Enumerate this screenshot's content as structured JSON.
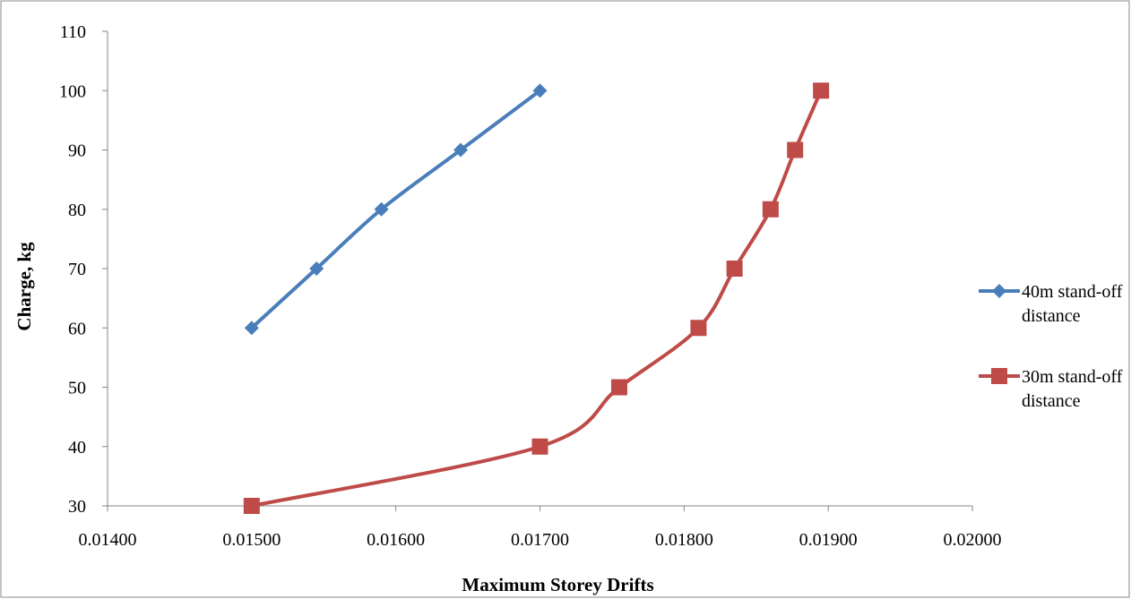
{
  "chart_data": {
    "type": "line",
    "title": "",
    "xlabel": "Maximum Storey Drifts",
    "ylabel": "Charge, kg",
    "xlim": [
      0.014,
      0.02
    ],
    "ylim": [
      30,
      110
    ],
    "x_ticks": [
      0.014,
      0.015,
      0.016,
      0.017,
      0.018,
      0.019,
      0.02
    ],
    "x_tick_labels": [
      "0.01400",
      "0.01500",
      "0.01600",
      "0.01700",
      "0.01800",
      "0.01900",
      "0.02000"
    ],
    "y_ticks": [
      30,
      40,
      50,
      60,
      70,
      80,
      90,
      100,
      110
    ],
    "y_tick_labels": [
      "30",
      "40",
      "50",
      "60",
      "70",
      "80",
      "90",
      "100",
      "110"
    ],
    "grid": false,
    "legend_position": "right",
    "series": [
      {
        "name_lines": [
          "40m stand-off",
          "distance"
        ],
        "color": "#4A7EBB",
        "marker": "diamond",
        "points": [
          {
            "x": 0.015,
            "y": 60
          },
          {
            "x": 0.01545,
            "y": 70
          },
          {
            "x": 0.0159,
            "y": 80
          },
          {
            "x": 0.01645,
            "y": 90
          },
          {
            "x": 0.017,
            "y": 100
          }
        ]
      },
      {
        "name_lines": [
          "30m stand-off",
          "distance"
        ],
        "color": "#BE4B48",
        "marker": "square",
        "points": [
          {
            "x": 0.015,
            "y": 30
          },
          {
            "x": 0.017,
            "y": 40
          },
          {
            "x": 0.01755,
            "y": 50
          },
          {
            "x": 0.0181,
            "y": 60
          },
          {
            "x": 0.01835,
            "y": 70
          },
          {
            "x": 0.0186,
            "y": 80
          },
          {
            "x": 0.01877,
            "y": 90
          },
          {
            "x": 0.01895,
            "y": 100
          }
        ]
      }
    ]
  }
}
